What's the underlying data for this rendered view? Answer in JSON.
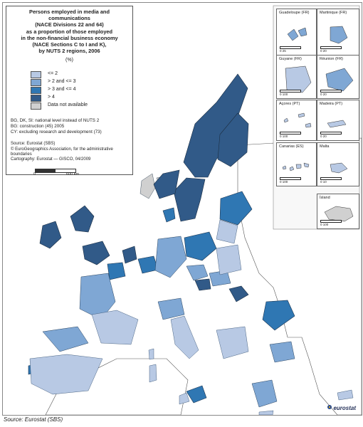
{
  "legend": {
    "title": "Persons employed in media and communications\n(NACE Divisions 22 and 64)\nas a proportion of those employed\nin the non-financial business economy\n(NACE Sections C to I and K),\nby NUTS 2 regions, 2006",
    "unit": "(%)",
    "classes": [
      {
        "label": "<= 2",
        "color": "#b8c9e4"
      },
      {
        "label": "> 2  and <= 3",
        "color": "#7fa7d4"
      },
      {
        "label": "> 3  and <= 4",
        "color": "#2f77b3"
      },
      {
        "label": "> 4",
        "color": "#315a88"
      },
      {
        "label": "Data not available",
        "color": "#d0d0d0"
      }
    ],
    "notes": [
      "BG, DK, SI: national level instead of NUTS 2",
      "BG: construction (45) 2005",
      "CY: excluding research and development (73)"
    ],
    "sources": [
      "Source: Eurostat (SBS)",
      "© EuroGeographics Association, for the administrative boundaries",
      "Cartography: Eurostat — GISCO, 04/2009"
    ],
    "scale": {
      "zero": "0",
      "distance": "600 km"
    }
  },
  "insets": [
    {
      "name": "Guadeloupe (FR)",
      "scale": "0   25"
    },
    {
      "name": "Martinique (FR)",
      "scale": "0   20"
    },
    {
      "name": "Guyane (FR)",
      "scale": "0   100"
    },
    {
      "name": "Réunion (FR)",
      "scale": "0   20"
    },
    {
      "name": "Açores (PT)",
      "scale": "0   100"
    },
    {
      "name": "Madeira (PT)",
      "scale": "0   20"
    },
    {
      "name": "Canarias (ES)",
      "scale": "0   100"
    },
    {
      "name": "Malta",
      "scale": "0   10"
    },
    {
      "name": "Ísland",
      "scale": "0   100"
    }
  ],
  "logo": "eurostat",
  "source": "Source: Eurostat (SBS)",
  "colors": {
    "class1": "#b8c9e4",
    "class2": "#7fa7d4",
    "class3": "#2f77b3",
    "class4": "#315a88",
    "na": "#d0d0d0",
    "border": "#334455",
    "sea": "#ffffff",
    "outside": "#ffffff"
  }
}
